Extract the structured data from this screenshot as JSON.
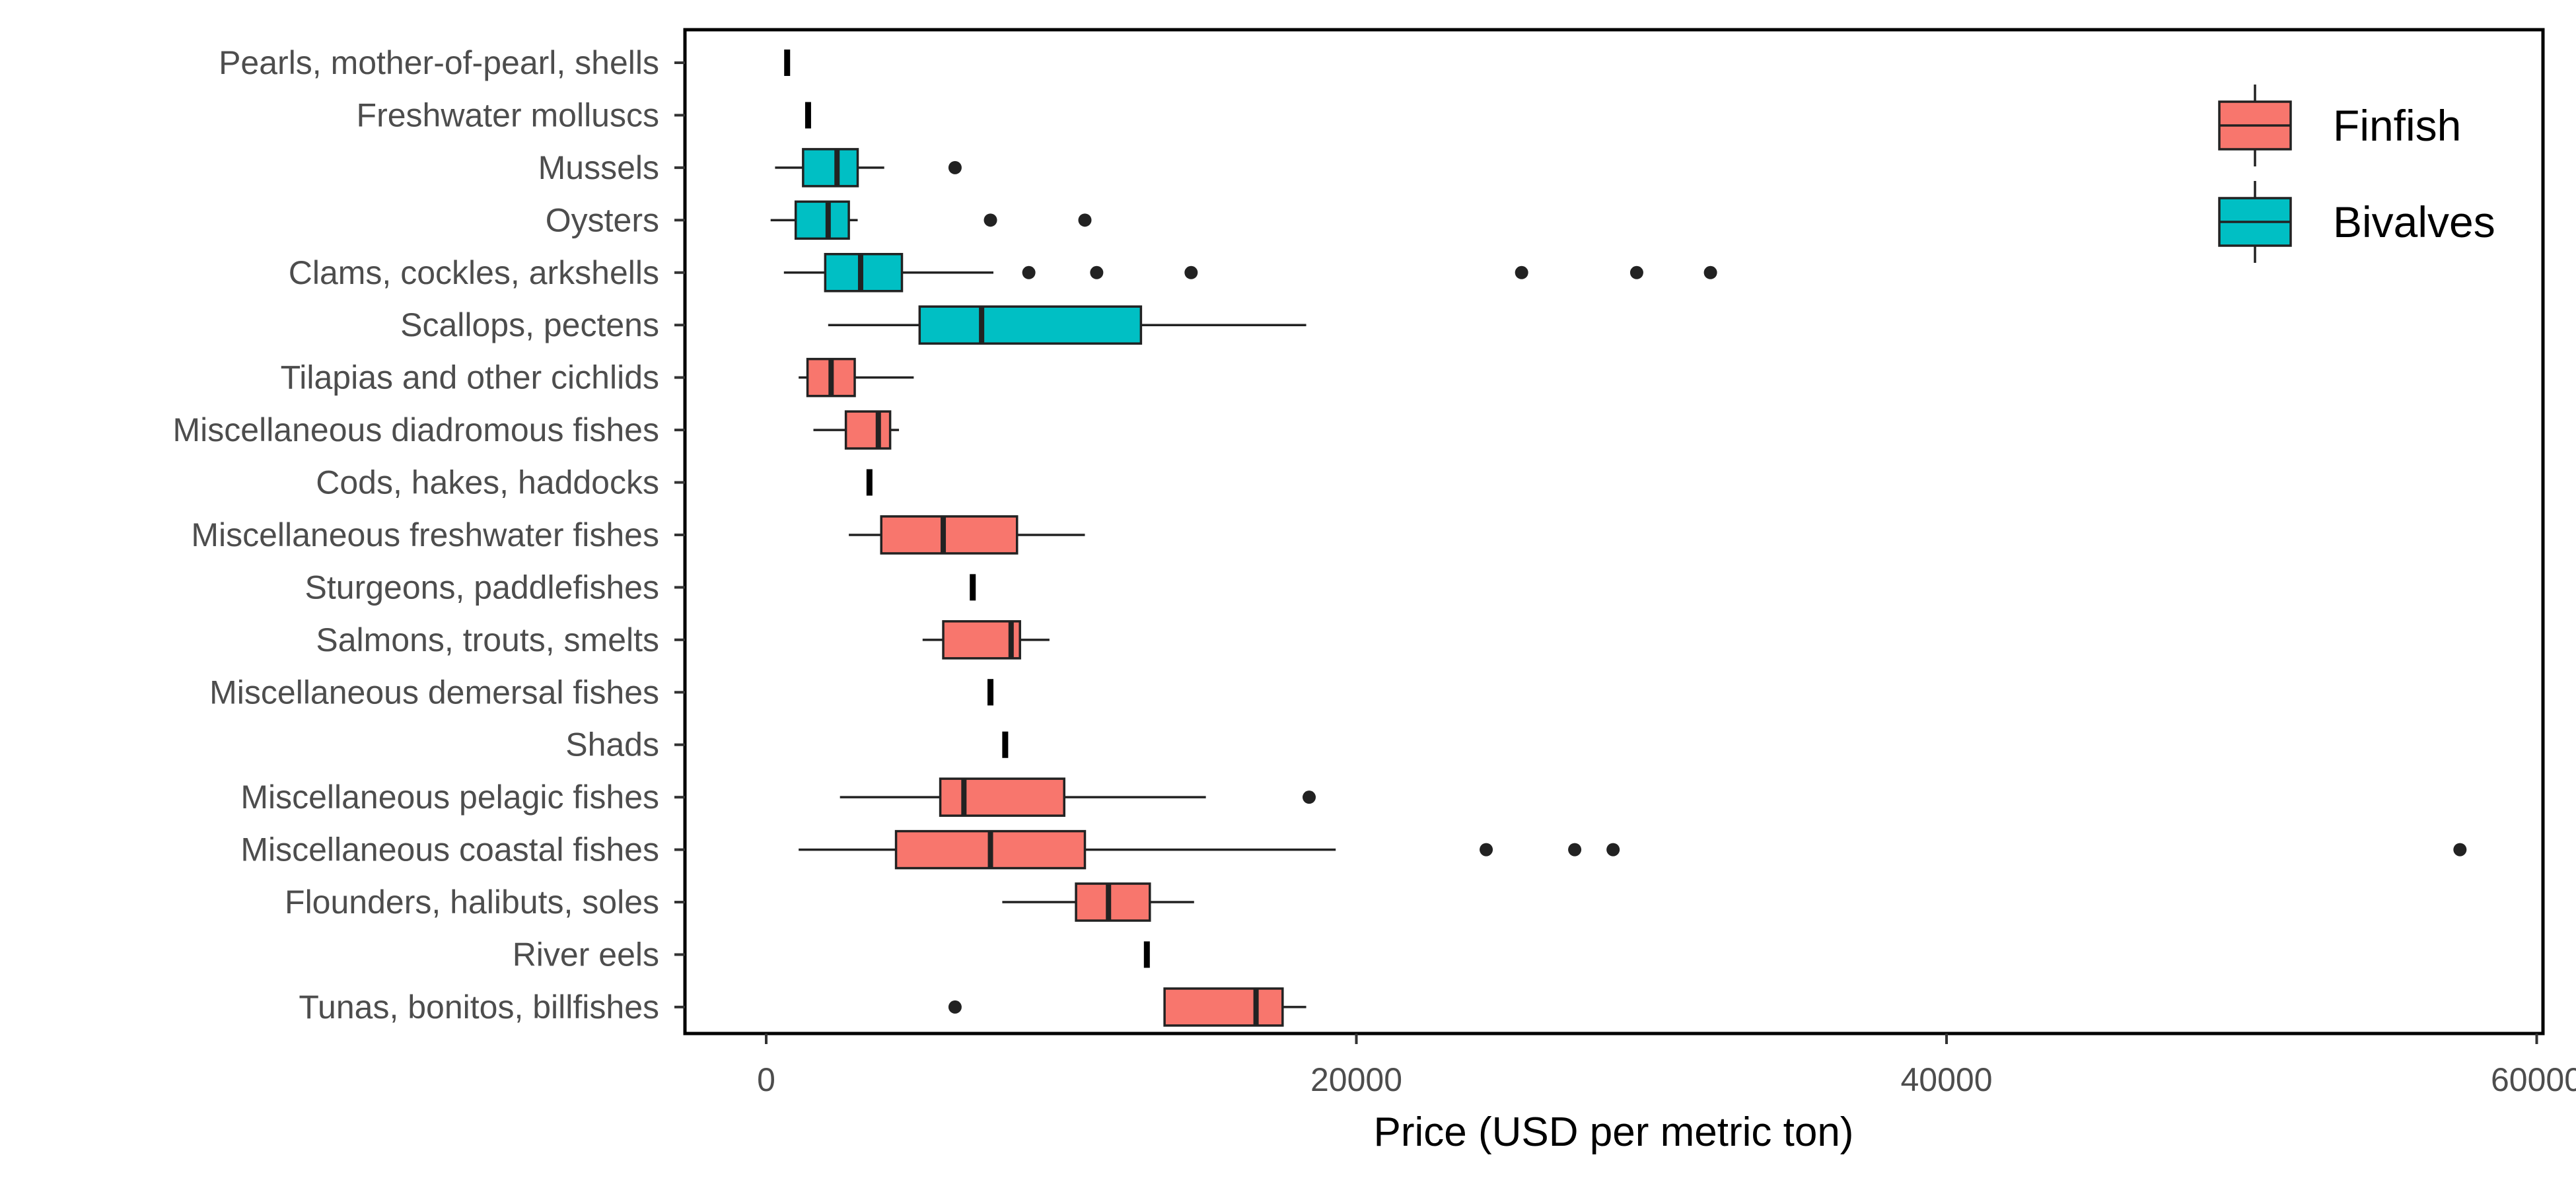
{
  "chart_data": {
    "type": "boxplot",
    "orientation": "horizontal",
    "title": "",
    "xlabel": "Price (USD per metric ton)",
    "ylabel": "",
    "xlim": [
      -2000,
      60000
    ],
    "x_ticks": [
      0,
      20000,
      40000,
      60000
    ],
    "x_tick_labels": [
      "0",
      "20000",
      "40000",
      "60000"
    ],
    "grid": false,
    "legend_position": "top-right",
    "series": [
      {
        "name": "Finfish",
        "color": "#F8766D"
      },
      {
        "name": "Bivalves",
        "color": "#00BFC4"
      }
    ],
    "categories": [
      {
        "label": "Pearls, mother-of-pearl, shells",
        "group": "Bivalves",
        "min": 640,
        "q1": 660,
        "median": 710,
        "q3": 800,
        "max": 820,
        "outliers": []
      },
      {
        "label": "Freshwater molluscs",
        "group": "Bivalves",
        "min": 1420,
        "q1": 1420,
        "median": 1420,
        "q3": 1420,
        "max": 1420,
        "outliers": []
      },
      {
        "label": "Mussels",
        "group": "Bivalves",
        "min": 300,
        "q1": 1250,
        "median": 2400,
        "q3": 3100,
        "max": 4000,
        "outliers": [
          6400
        ]
      },
      {
        "label": "Oysters",
        "group": "Bivalves",
        "min": 150,
        "q1": 1000,
        "median": 2100,
        "q3": 2800,
        "max": 3100,
        "outliers": [
          7600,
          10800
        ]
      },
      {
        "label": "Clams, cockles, arkshells",
        "group": "Bivalves",
        "min": 600,
        "q1": 2000,
        "median": 3200,
        "q3": 4600,
        "max": 7700,
        "outliers": [
          8900,
          11200,
          14400,
          25600,
          29500,
          32000
        ]
      },
      {
        "label": "Scallops, pectens",
        "group": "Bivalves",
        "min": 2100,
        "q1": 5200,
        "median": 7300,
        "q3": 12700,
        "max": 18300,
        "outliers": []
      },
      {
        "label": "Tilapias and other cichlids",
        "group": "Finfish",
        "min": 1100,
        "q1": 1400,
        "median": 2200,
        "q3": 3000,
        "max": 5000,
        "outliers": []
      },
      {
        "label": "Miscellaneous diadromous fishes",
        "group": "Finfish",
        "min": 1600,
        "q1": 2700,
        "median": 3800,
        "q3": 4200,
        "max": 4500,
        "outliers": []
      },
      {
        "label": "Cods, hakes, haddocks",
        "group": "Finfish",
        "min": 3500,
        "q1": 3500,
        "median": 3500,
        "q3": 3500,
        "max": 3500,
        "outliers": []
      },
      {
        "label": "Miscellaneous freshwater fishes",
        "group": "Finfish",
        "min": 2800,
        "q1": 3900,
        "median": 6000,
        "q3": 8500,
        "max": 10800,
        "outliers": []
      },
      {
        "label": "Sturgeons, paddlefishes",
        "group": "Finfish",
        "min": 6850,
        "q1": 6900,
        "median": 7000,
        "q3": 7100,
        "max": 7150,
        "outliers": []
      },
      {
        "label": "Salmons, trouts, smelts",
        "group": "Finfish",
        "min": 5300,
        "q1": 6000,
        "median": 8300,
        "q3": 8600,
        "max": 9600,
        "outliers": []
      },
      {
        "label": "Miscellaneous demersal fishes",
        "group": "Finfish",
        "min": 7600,
        "q1": 7600,
        "median": 7600,
        "q3": 7600,
        "max": 7600,
        "outliers": []
      },
      {
        "label": "Shads",
        "group": "Finfish",
        "min": 8100,
        "q1": 8100,
        "median": 8100,
        "q3": 8100,
        "max": 8100,
        "outliers": []
      },
      {
        "label": "Miscellaneous pelagic fishes",
        "group": "Finfish",
        "min": 2500,
        "q1": 5900,
        "median": 6700,
        "q3": 10100,
        "max": 14900,
        "outliers": [
          18400
        ]
      },
      {
        "label": "Miscellaneous coastal fishes",
        "group": "Finfish",
        "min": 1100,
        "q1": 4400,
        "median": 7600,
        "q3": 10800,
        "max": 19300,
        "outliers": [
          24400,
          27400,
          28700,
          57400
        ]
      },
      {
        "label": "Flounders, halibuts, soles",
        "group": "Finfish",
        "min": 8000,
        "q1": 10500,
        "median": 11600,
        "q3": 13000,
        "max": 14500,
        "outliers": []
      },
      {
        "label": "River eels",
        "group": "Finfish",
        "min": 12800,
        "q1": 12850,
        "median": 12900,
        "q3": 12950,
        "max": 13000,
        "outliers": []
      },
      {
        "label": "Tunas, bonitos, billfishes",
        "group": "Finfish",
        "min": 13500,
        "q1": 13500,
        "median": 16600,
        "q3": 17500,
        "max": 18300,
        "outliers": [
          6400
        ]
      }
    ]
  }
}
